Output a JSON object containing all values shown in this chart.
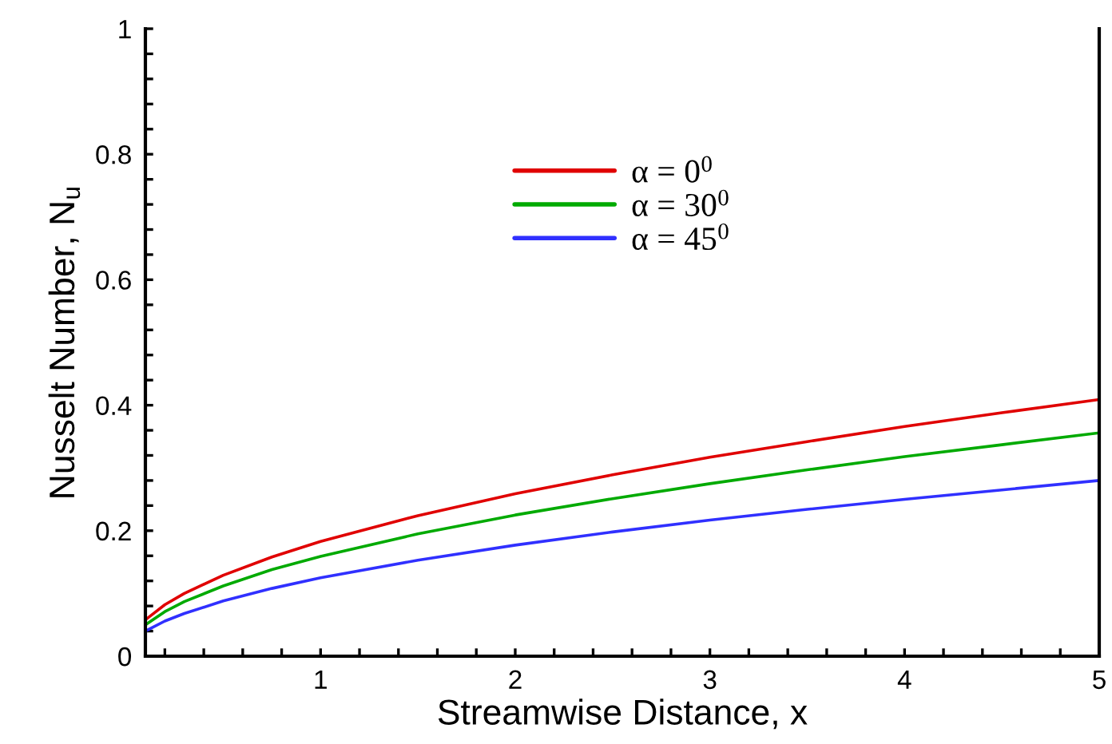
{
  "chart_data": {
    "type": "line",
    "xlabel": "Streamwise Distance, x",
    "ylabel": "Nusselt Number, N$_{u}$",
    "x": [
      0.1,
      0.2,
      0.3,
      0.5,
      0.75,
      1,
      1.5,
      2,
      2.5,
      3,
      3.5,
      4,
      4.5,
      5
    ],
    "series": [
      {
        "name": "α = 0$^{0}$",
        "color": "#e00000",
        "values": [
          0.058,
          0.082,
          0.1,
          0.129,
          0.158,
          0.183,
          0.224,
          0.259,
          0.289,
          0.317,
          0.342,
          0.366,
          0.388,
          0.409
        ]
      },
      {
        "name": "α = 30$^{0}$",
        "color": "#00aa00",
        "values": [
          0.05,
          0.071,
          0.087,
          0.112,
          0.138,
          0.159,
          0.195,
          0.225,
          0.251,
          0.275,
          0.297,
          0.318,
          0.337,
          0.356
        ]
      },
      {
        "name": "α = 45$^{0}$",
        "color": "#3030ff",
        "values": [
          0.04,
          0.056,
          0.068,
          0.088,
          0.108,
          0.125,
          0.153,
          0.177,
          0.198,
          0.217,
          0.234,
          0.25,
          0.265,
          0.28
        ]
      }
    ],
    "xlim": [
      0.1,
      5
    ],
    "ylim": [
      0,
      1
    ],
    "xticks": [
      {
        "value": 0.2,
        "label": null
      },
      {
        "value": 0.4,
        "label": null
      },
      {
        "value": 0.6,
        "label": null
      },
      {
        "value": 0.8,
        "label": null
      },
      1,
      {
        "value": 1.2,
        "label": null
      },
      {
        "value": 1.4,
        "label": null
      },
      {
        "value": 1.6,
        "label": null
      },
      {
        "value": 1.8,
        "label": null
      },
      2,
      {
        "value": 2.2,
        "label": null
      },
      {
        "value": 2.4,
        "label": null
      },
      {
        "value": 2.6,
        "label": null
      },
      {
        "value": 2.8,
        "label": null
      },
      3,
      {
        "value": 3.2,
        "label": null
      },
      {
        "value": 3.4,
        "label": null
      },
      {
        "value": 3.6,
        "label": null
      },
      {
        "value": 3.8,
        "label": null
      },
      4,
      {
        "value": 4.2,
        "label": null
      },
      {
        "value": 4.4,
        "label": null
      },
      {
        "value": 4.6,
        "label": null
      },
      {
        "value": 4.8,
        "label": null
      },
      5
    ],
    "yticks": [
      0,
      {
        "value": 0.04,
        "label": null
      },
      {
        "value": 0.08,
        "label": null
      },
      {
        "value": 0.12,
        "label": null
      },
      {
        "value": 0.16,
        "label": null
      },
      0.2,
      {
        "value": 0.24,
        "label": null
      },
      {
        "value": 0.28,
        "label": null
      },
      {
        "value": 0.32,
        "label": null
      },
      {
        "value": 0.36,
        "label": null
      },
      0.4,
      {
        "value": 0.44,
        "label": null
      },
      {
        "value": 0.48,
        "label": null
      },
      {
        "value": 0.52,
        "label": null
      },
      {
        "value": 0.56,
        "label": null
      },
      0.6,
      {
        "value": 0.64,
        "label": null
      },
      {
        "value": 0.68,
        "label": null
      },
      {
        "value": 0.72,
        "label": null
      },
      {
        "value": 0.76,
        "label": null
      },
      0.8,
      {
        "value": 0.84,
        "label": null
      },
      {
        "value": 0.88,
        "label": null
      },
      {
        "value": 0.92,
        "label": null
      },
      {
        "value": 0.96,
        "label": null
      },
      1
    ],
    "legend": "top",
    "grid": false
  }
}
